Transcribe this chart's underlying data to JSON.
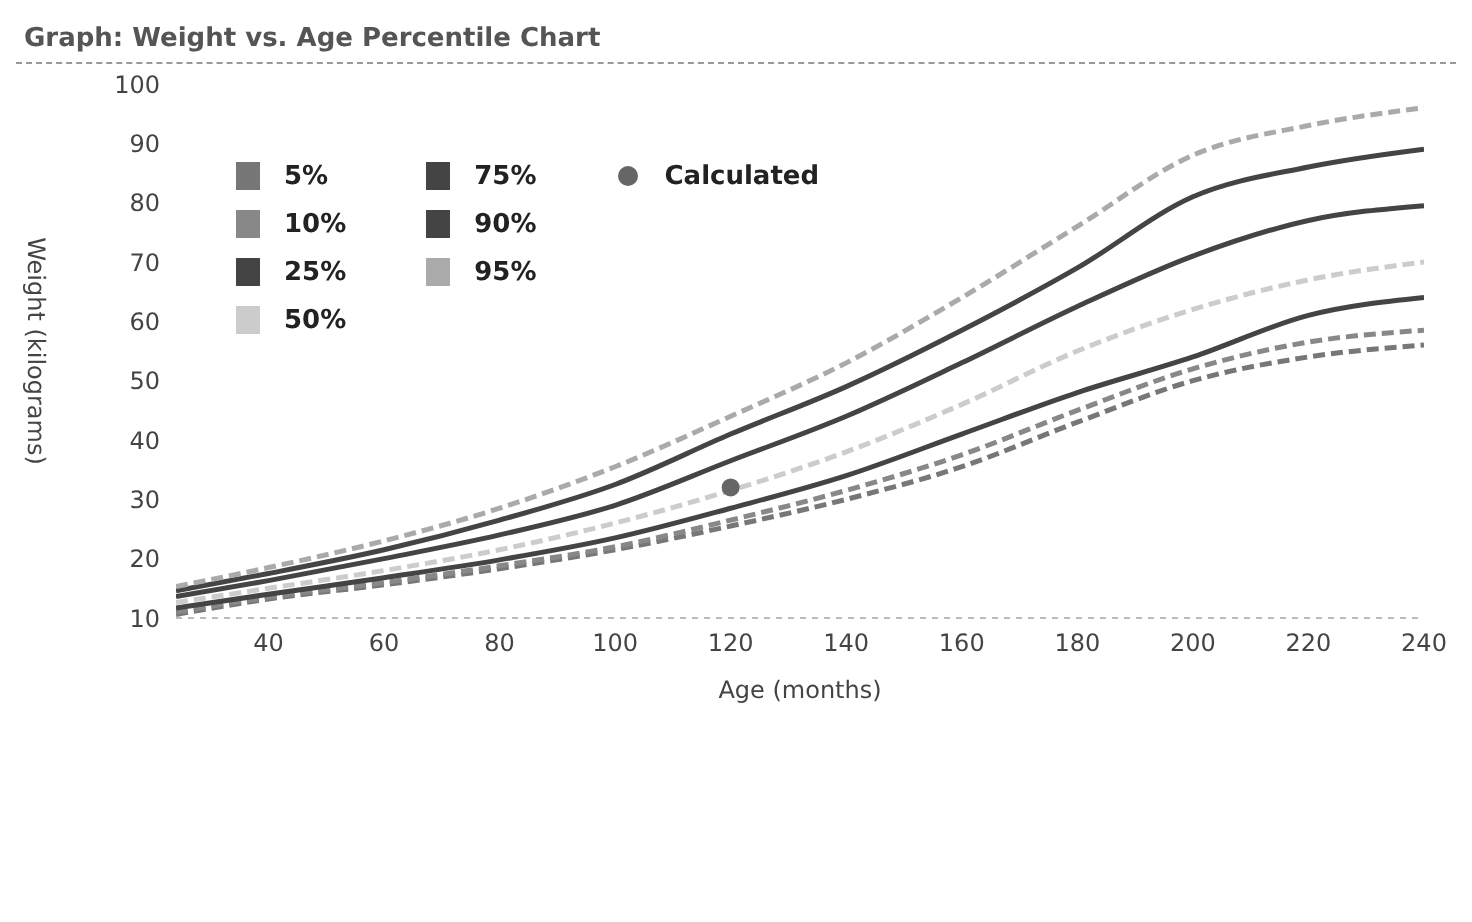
{
  "chart_data": {
    "type": "line",
    "title": "Graph: Weight vs. Age Percentile Chart",
    "xlabel": "Age (months)",
    "ylabel": "Weight (kilograms)",
    "x": [
      24,
      40,
      60,
      80,
      100,
      120,
      140,
      160,
      180,
      200,
      220,
      240
    ],
    "series": [
      {
        "name": "5%",
        "color": "#777777",
        "line_style": "dashed",
        "values": [
          10.6,
          13.2,
          15.6,
          18.3,
          21.5,
          25.5,
          30,
          35.5,
          43,
          50,
          54,
          56
        ]
      },
      {
        "name": "10%",
        "color": "#888888",
        "line_style": "dashed",
        "values": [
          11,
          13.5,
          16,
          18.8,
          22,
          26.5,
          31.5,
          37.5,
          45,
          52,
          56.5,
          58.5
        ]
      },
      {
        "name": "25%",
        "color": "#444444",
        "line_style": "solid",
        "values": [
          11.7,
          14,
          16.8,
          19.8,
          23.5,
          28.5,
          34,
          41,
          48,
          54,
          61,
          64
        ]
      },
      {
        "name": "50%",
        "color": "#cccccc",
        "line_style": "dashed",
        "values": [
          12.6,
          15,
          18,
          21.5,
          26,
          31.5,
          38,
          46,
          55,
          62,
          67,
          70
        ]
      },
      {
        "name": "75%",
        "color": "#444444",
        "line_style": "solid",
        "values": [
          13.6,
          16.3,
          20,
          24,
          29,
          36.5,
          44,
          53,
          62.5,
          71,
          77,
          79.5
        ]
      },
      {
        "name": "90%",
        "color": "#444444",
        "line_style": "solid",
        "values": [
          14.6,
          17.5,
          21.5,
          26.5,
          32.5,
          41,
          49,
          58.5,
          69,
          81,
          86,
          89
        ]
      },
      {
        "name": "95%",
        "color": "#aaaaaa",
        "line_style": "dashed",
        "values": [
          15.3,
          18.5,
          23,
          28.5,
          35.5,
          44,
          53,
          64,
          76,
          88,
          93,
          96
        ]
      },
      {
        "name": "Calculated",
        "type": "scatter",
        "marker": "circle",
        "color": "#666666",
        "x": [
          120
        ],
        "values": [
          32
        ]
      }
    ],
    "marker": "none",
    "grid": false,
    "legend": "top left",
    "xlim": [
      24,
      240
    ],
    "xticks": [
      40,
      60,
      80,
      100,
      120,
      140,
      160,
      180,
      200,
      220,
      240
    ],
    "ylim": [
      10,
      100
    ],
    "yticks": [
      10,
      20,
      30,
      40,
      50,
      60,
      70,
      80,
      90,
      100
    ]
  }
}
